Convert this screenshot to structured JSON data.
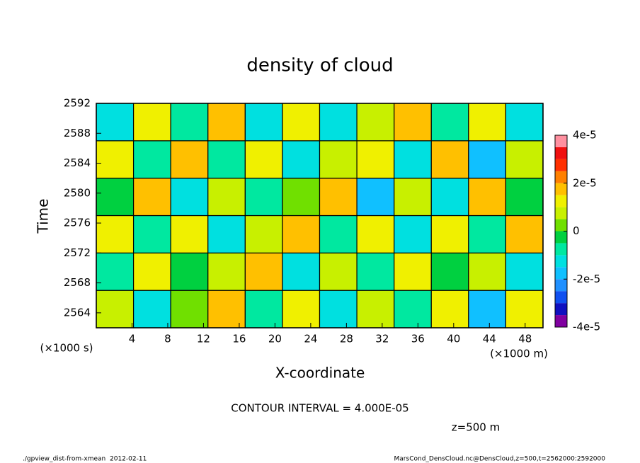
{
  "chart_data": {
    "type": "heatmap",
    "title": "density of cloud",
    "xlabel": "X-coordinate",
    "ylabel": "Time",
    "xunit": "(×1000 m)",
    "yunit": "(×1000 s)",
    "xlim": [
      0,
      50
    ],
    "xticks": [
      4,
      8,
      12,
      16,
      20,
      24,
      28,
      32,
      36,
      40,
      44,
      48
    ],
    "ylim": [
      2562,
      2592
    ],
    "yticks": [
      2564,
      2568,
      2572,
      2576,
      2580,
      2584,
      2588,
      2592
    ],
    "z": [
      [
        8e-06,
        -1.2e-05,
        4e-06,
        1.5e-05,
        -6e-06,
        1e-05,
        -1.4e-05,
        6e-06,
        -8e-06,
        1.2e-05,
        -1.6e-05,
        1.4e-05
      ],
      [
        -1e-05,
        1.4e-05,
        -4e-06,
        9e-06,
        1.6e-05,
        -1.2e-05,
        7e-06,
        -1e-05,
        1.3e-05,
        -5e-06,
        8e-06,
        -1.1e-05
      ],
      [
        1.3e-05,
        -7e-06,
        1.1e-05,
        -1.5e-05,
        5e-06,
        1.8e-05,
        -9e-06,
        1.2e-05,
        -1.3e-05,
        1e-05,
        -7e-06,
        1.5e-05
      ],
      [
        -5e-06,
        1.6e-05,
        -1.3e-05,
        7e-06,
        -1e-05,
        4e-06,
        1.5e-05,
        -1.6e-05,
        9e-06,
        -1.2e-05,
        1.7e-05,
        -4e-06
      ],
      [
        1.1e-05,
        -9e-06,
        1.7e-05,
        -6e-06,
        1.3e-05,
        -1.4e-05,
        6e-06,
        1.4e-05,
        -1.1e-05,
        1.5e-05,
        -1.8e-05,
        9e-06
      ],
      [
        -1.4e-05,
        1.2e-05,
        -8e-06,
        1.9e-05,
        -1.2e-05,
        1e-05,
        -1.5e-05,
        8e-06,
        1.6e-05,
        -9e-06,
        1.1e-05,
        -1.3e-05
      ]
    ],
    "clim": [
      -4e-05,
      4e-05
    ],
    "cticks": [
      {
        "value": -4e-05,
        "label": "-4e-5"
      },
      {
        "value": -2e-05,
        "label": "-2e-5"
      },
      0,
      {
        "value": 2e-05,
        "label": "2e-5"
      },
      {
        "value": 4e-05,
        "label": "4e-5"
      }
    ],
    "colorscale": [
      "#8000a0",
      "#1010c0",
      "#1050f0",
      "#2090ff",
      "#10c0ff",
      "#00e0e0",
      "#00e8a0",
      "#00d040",
      "#70e000",
      "#c8f000",
      "#f0f000",
      "#ffc000",
      "#ff8000",
      "#ff3000",
      "#f01010",
      "#ff90a0"
    ],
    "annotation": "CONTOUR INTERVAL = 4.000E-05",
    "level_note": "z=500 m",
    "footer_left": "./gpview_dist-from-xmean  2012-02-11",
    "footer_right": "MarsCond_DensCloud.nc@DensCloud,z=500,t=2562000:2592000"
  }
}
